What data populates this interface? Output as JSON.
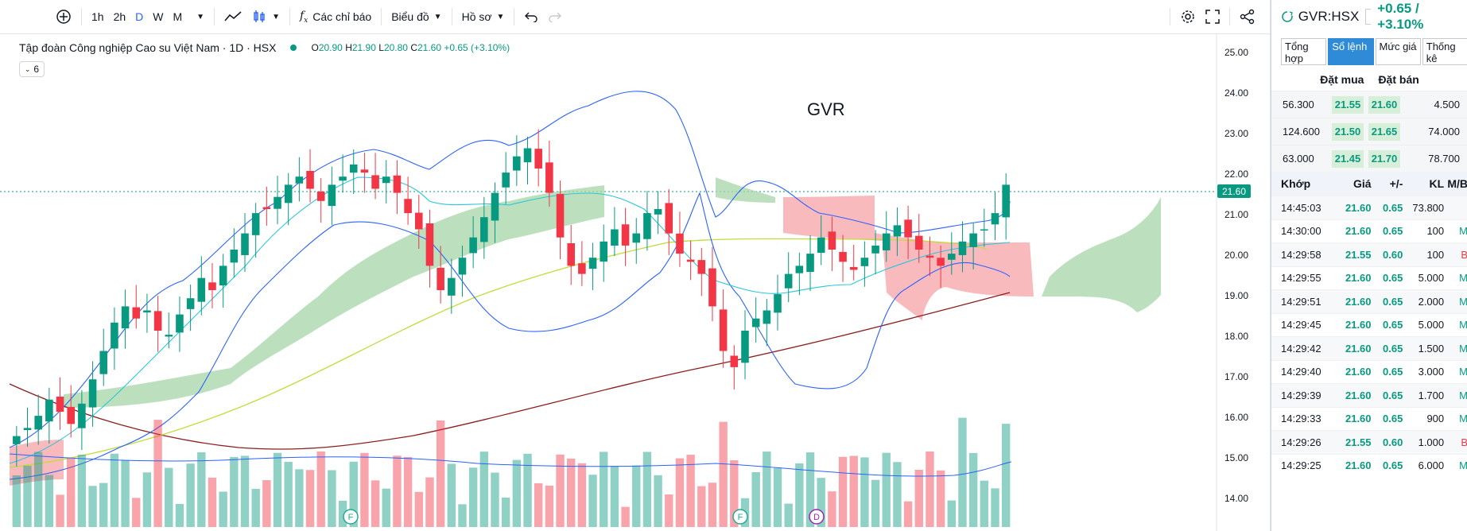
{
  "toolbar": {
    "intervals": [
      "1h",
      "2h",
      "D",
      "W",
      "M"
    ],
    "active_interval": "D",
    "indicators_label": "Các chỉ báo",
    "chart_label": "Biểu đồ",
    "profile_label": "Hồ sơ"
  },
  "chart": {
    "title": "Tập đoàn Công nghiệp Cao su Việt Nam · 1D · HSX",
    "ohlc": {
      "o_label": "O",
      "o": "20.90",
      "h_label": "H",
      "h": "21.90",
      "l_label": "L",
      "l": "20.80",
      "c_label": "C",
      "c": "21.60",
      "change": "+0.65 (+3.10%)"
    },
    "collapse_count": "6",
    "watermark": "GVR",
    "last_price": "21.60",
    "price_axis": [
      "25.00",
      "24.00",
      "23.00",
      "22.00",
      "21.00",
      "20.00",
      "19.00",
      "18.00",
      "17.00",
      "16.00",
      "15.00",
      "14.00"
    ],
    "markers": [
      "F",
      "F",
      "D"
    ]
  },
  "colors": {
    "up": "#089981",
    "down": "#f23645",
    "accent": "#2962ff"
  },
  "panel": {
    "symbol": "GVR:HSX",
    "change": "+0.65 / +3.10%",
    "tabs": [
      "Tổng hợp",
      "Sổ lệnh",
      "Mức giá",
      "Thống kê"
    ],
    "active_tab": "Sổ lệnh",
    "orderbook_head": {
      "buy": "Đặt mua",
      "sell": "Đặt bán"
    },
    "orderbook": [
      {
        "buy_vol": "56.300",
        "buy_price": "21.55",
        "sell_price": "21.60",
        "sell_vol": "4.500"
      },
      {
        "buy_vol": "124.600",
        "buy_price": "21.50",
        "sell_price": "21.65",
        "sell_vol": "74.000"
      },
      {
        "buy_vol": "63.000",
        "buy_price": "21.45",
        "sell_price": "21.70",
        "sell_vol": "78.700"
      }
    ],
    "match_head": {
      "time": "Khớp",
      "price": "Giá",
      "change": "+/-",
      "vol": "KL",
      "side": "M/B"
    },
    "matches": [
      {
        "time": "14:45:03",
        "price": "21.60",
        "change": "0.65",
        "vol": "73.800",
        "side": ""
      },
      {
        "time": "14:30:00",
        "price": "21.60",
        "change": "0.65",
        "vol": "100",
        "side": "M"
      },
      {
        "time": "14:29:58",
        "price": "21.55",
        "change": "0.60",
        "vol": "100",
        "side": "B"
      },
      {
        "time": "14:29:55",
        "price": "21.60",
        "change": "0.65",
        "vol": "5.000",
        "side": "M"
      },
      {
        "time": "14:29:51",
        "price": "21.60",
        "change": "0.65",
        "vol": "2.000",
        "side": "M"
      },
      {
        "time": "14:29:45",
        "price": "21.60",
        "change": "0.65",
        "vol": "5.000",
        "side": "M"
      },
      {
        "time": "14:29:42",
        "price": "21.60",
        "change": "0.65",
        "vol": "1.500",
        "side": "M"
      },
      {
        "time": "14:29:40",
        "price": "21.60",
        "change": "0.65",
        "vol": "3.000",
        "side": "M"
      },
      {
        "time": "14:29:39",
        "price": "21.60",
        "change": "0.65",
        "vol": "1.700",
        "side": "M"
      },
      {
        "time": "14:29:33",
        "price": "21.60",
        "change": "0.65",
        "vol": "900",
        "side": "M"
      },
      {
        "time": "14:29:26",
        "price": "21.55",
        "change": "0.60",
        "vol": "1.000",
        "side": "B"
      },
      {
        "time": "14:29:25",
        "price": "21.60",
        "change": "0.65",
        "vol": "6.000",
        "side": "M"
      }
    ]
  }
}
